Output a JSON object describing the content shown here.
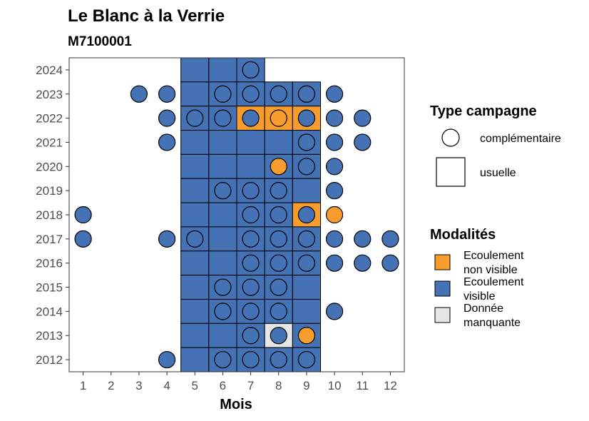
{
  "chart_data": {
    "type": "heatmap",
    "title": "Le Blanc à la Verrie",
    "subtitle": "M7100001",
    "xlabel": "Mois",
    "x_ticks": [
      1,
      2,
      3,
      4,
      5,
      6,
      7,
      8,
      9,
      10,
      11,
      12
    ],
    "y_ticks": [
      2012,
      2013,
      2014,
      2015,
      2016,
      2017,
      2018,
      2019,
      2020,
      2021,
      2022,
      2023,
      2024
    ],
    "xlim": [
      0.5,
      12.5
    ],
    "ylim": [
      2011.5,
      2024.5
    ],
    "grid": false,
    "colors": {
      "Ecoulement non visible": "#f89c2e",
      "Ecoulement visible": "#4472b4",
      "Donnée manquante": "#e6e6e6"
    },
    "usuelle": [
      {
        "year": 2024,
        "months": [
          [
            5,
            "Ecoulement visible"
          ],
          [
            6,
            "Ecoulement visible"
          ],
          [
            7,
            "Ecoulement visible"
          ]
        ]
      },
      {
        "year": 2023,
        "months": [
          [
            5,
            "Ecoulement visible"
          ],
          [
            6,
            "Ecoulement visible"
          ],
          [
            7,
            "Ecoulement visible"
          ],
          [
            8,
            "Ecoulement visible"
          ],
          [
            9,
            "Ecoulement visible"
          ]
        ]
      },
      {
        "year": 2022,
        "months": [
          [
            5,
            "Ecoulement visible"
          ],
          [
            6,
            "Ecoulement visible"
          ],
          [
            7,
            "Ecoulement non visible"
          ],
          [
            8,
            "Ecoulement non visible"
          ],
          [
            9,
            "Ecoulement non visible"
          ]
        ]
      },
      {
        "year": 2021,
        "months": [
          [
            5,
            "Ecoulement visible"
          ],
          [
            6,
            "Ecoulement visible"
          ],
          [
            7,
            "Ecoulement visible"
          ],
          [
            8,
            "Ecoulement visible"
          ],
          [
            9,
            "Ecoulement visible"
          ]
        ]
      },
      {
        "year": 2020,
        "months": [
          [
            5,
            "Ecoulement visible"
          ],
          [
            6,
            "Ecoulement visible"
          ],
          [
            7,
            "Ecoulement visible"
          ],
          [
            8,
            "Ecoulement visible"
          ],
          [
            9,
            "Ecoulement visible"
          ]
        ]
      },
      {
        "year": 2019,
        "months": [
          [
            5,
            "Ecoulement visible"
          ],
          [
            6,
            "Ecoulement visible"
          ],
          [
            7,
            "Ecoulement visible"
          ],
          [
            8,
            "Ecoulement visible"
          ],
          [
            9,
            "Ecoulement visible"
          ]
        ]
      },
      {
        "year": 2018,
        "months": [
          [
            5,
            "Ecoulement visible"
          ],
          [
            6,
            "Ecoulement visible"
          ],
          [
            7,
            "Ecoulement visible"
          ],
          [
            8,
            "Ecoulement visible"
          ],
          [
            9,
            "Ecoulement non visible"
          ]
        ]
      },
      {
        "year": 2017,
        "months": [
          [
            5,
            "Ecoulement visible"
          ],
          [
            6,
            "Ecoulement visible"
          ],
          [
            7,
            "Ecoulement visible"
          ],
          [
            8,
            "Ecoulement visible"
          ],
          [
            9,
            "Ecoulement visible"
          ]
        ]
      },
      {
        "year": 2016,
        "months": [
          [
            5,
            "Ecoulement visible"
          ],
          [
            6,
            "Ecoulement visible"
          ],
          [
            7,
            "Ecoulement visible"
          ],
          [
            8,
            "Ecoulement visible"
          ],
          [
            9,
            "Ecoulement visible"
          ]
        ]
      },
      {
        "year": 2015,
        "months": [
          [
            5,
            "Ecoulement visible"
          ],
          [
            6,
            "Ecoulement visible"
          ],
          [
            7,
            "Ecoulement visible"
          ],
          [
            8,
            "Ecoulement visible"
          ],
          [
            9,
            "Ecoulement visible"
          ]
        ]
      },
      {
        "year": 2014,
        "months": [
          [
            5,
            "Ecoulement visible"
          ],
          [
            6,
            "Ecoulement visible"
          ],
          [
            7,
            "Ecoulement visible"
          ],
          [
            8,
            "Ecoulement visible"
          ],
          [
            9,
            "Ecoulement visible"
          ]
        ]
      },
      {
        "year": 2013,
        "months": [
          [
            5,
            "Ecoulement visible"
          ],
          [
            6,
            "Ecoulement visible"
          ],
          [
            7,
            "Ecoulement visible"
          ],
          [
            8,
            "Donnée manquante"
          ],
          [
            9,
            "Ecoulement visible"
          ]
        ]
      },
      {
        "year": 2012,
        "months": [
          [
            5,
            "Ecoulement visible"
          ],
          [
            6,
            "Ecoulement visible"
          ],
          [
            7,
            "Ecoulement visible"
          ],
          [
            8,
            "Ecoulement visible"
          ],
          [
            9,
            "Ecoulement visible"
          ]
        ]
      }
    ],
    "complementaire": [
      {
        "year": 2024,
        "months": [
          [
            7,
            "Ecoulement visible"
          ]
        ]
      },
      {
        "year": 2023,
        "months": [
          [
            3,
            "Ecoulement visible"
          ],
          [
            4,
            "Ecoulement visible"
          ],
          [
            6,
            "Ecoulement visible"
          ],
          [
            7,
            "Ecoulement visible"
          ],
          [
            8,
            "Ecoulement visible"
          ],
          [
            9,
            "Ecoulement visible"
          ],
          [
            10,
            "Ecoulement visible"
          ]
        ]
      },
      {
        "year": 2022,
        "months": [
          [
            4,
            "Ecoulement visible"
          ],
          [
            5,
            "Ecoulement visible"
          ],
          [
            6,
            "Ecoulement visible"
          ],
          [
            7,
            "Ecoulement visible"
          ],
          [
            8,
            "Ecoulement non visible"
          ],
          [
            9,
            "Ecoulement visible"
          ],
          [
            10,
            "Ecoulement visible"
          ],
          [
            11,
            "Ecoulement visible"
          ]
        ]
      },
      {
        "year": 2021,
        "months": [
          [
            4,
            "Ecoulement visible"
          ],
          [
            9,
            "Ecoulement visible"
          ],
          [
            10,
            "Ecoulement visible"
          ],
          [
            11,
            "Ecoulement visible"
          ]
        ]
      },
      {
        "year": 2020,
        "months": [
          [
            8,
            "Ecoulement non visible"
          ],
          [
            9,
            "Ecoulement visible"
          ],
          [
            10,
            "Ecoulement visible"
          ]
        ]
      },
      {
        "year": 2019,
        "months": [
          [
            6,
            "Ecoulement visible"
          ],
          [
            7,
            "Ecoulement visible"
          ],
          [
            8,
            "Ecoulement visible"
          ],
          [
            10,
            "Ecoulement visible"
          ]
        ]
      },
      {
        "year": 2018,
        "months": [
          [
            1,
            "Ecoulement visible"
          ],
          [
            7,
            "Ecoulement visible"
          ],
          [
            8,
            "Ecoulement visible"
          ],
          [
            9,
            "Ecoulement visible"
          ],
          [
            10,
            "Ecoulement non visible"
          ]
        ]
      },
      {
        "year": 2017,
        "months": [
          [
            1,
            "Ecoulement visible"
          ],
          [
            4,
            "Ecoulement visible"
          ],
          [
            5,
            "Ecoulement visible"
          ],
          [
            7,
            "Ecoulement visible"
          ],
          [
            8,
            "Ecoulement visible"
          ],
          [
            9,
            "Ecoulement visible"
          ],
          [
            10,
            "Ecoulement visible"
          ],
          [
            11,
            "Ecoulement visible"
          ],
          [
            12,
            "Ecoulement visible"
          ]
        ]
      },
      {
        "year": 2016,
        "months": [
          [
            7,
            "Ecoulement visible"
          ],
          [
            8,
            "Ecoulement visible"
          ],
          [
            9,
            "Ecoulement visible"
          ],
          [
            10,
            "Ecoulement visible"
          ],
          [
            11,
            "Ecoulement visible"
          ],
          [
            12,
            "Ecoulement visible"
          ]
        ]
      },
      {
        "year": 2015,
        "months": [
          [
            6,
            "Ecoulement visible"
          ],
          [
            7,
            "Ecoulement visible"
          ],
          [
            8,
            "Ecoulement visible"
          ]
        ]
      },
      {
        "year": 2014,
        "months": [
          [
            6,
            "Ecoulement visible"
          ],
          [
            7,
            "Ecoulement visible"
          ],
          [
            8,
            "Ecoulement visible"
          ],
          [
            10,
            "Ecoulement visible"
          ]
        ]
      },
      {
        "year": 2013,
        "months": [
          [
            7,
            "Ecoulement visible"
          ],
          [
            8,
            "Ecoulement visible"
          ],
          [
            9,
            "Ecoulement non visible"
          ]
        ]
      },
      {
        "year": 2012,
        "months": [
          [
            4,
            "Ecoulement visible"
          ],
          [
            6,
            "Ecoulement visible"
          ],
          [
            7,
            "Ecoulement visible"
          ],
          [
            8,
            "Ecoulement visible"
          ],
          [
            9,
            "Ecoulement visible"
          ]
        ]
      }
    ],
    "legend": {
      "placement": "right",
      "type_title": "Type campagne",
      "type_items": [
        {
          "key": "complementaire",
          "label": "complémentaire"
        },
        {
          "key": "usuelle",
          "label": "usuelle"
        }
      ],
      "mod_title": "Modalités",
      "mod_items": [
        {
          "key": "Ecoulement non visible",
          "line1": "Ecoulement",
          "line2": "non visible"
        },
        {
          "key": "Ecoulement visible",
          "line1": "Ecoulement",
          "line2": "visible"
        },
        {
          "key": "Donnée manquante",
          "line1": "Donnée",
          "line2": "manquante"
        }
      ]
    }
  }
}
